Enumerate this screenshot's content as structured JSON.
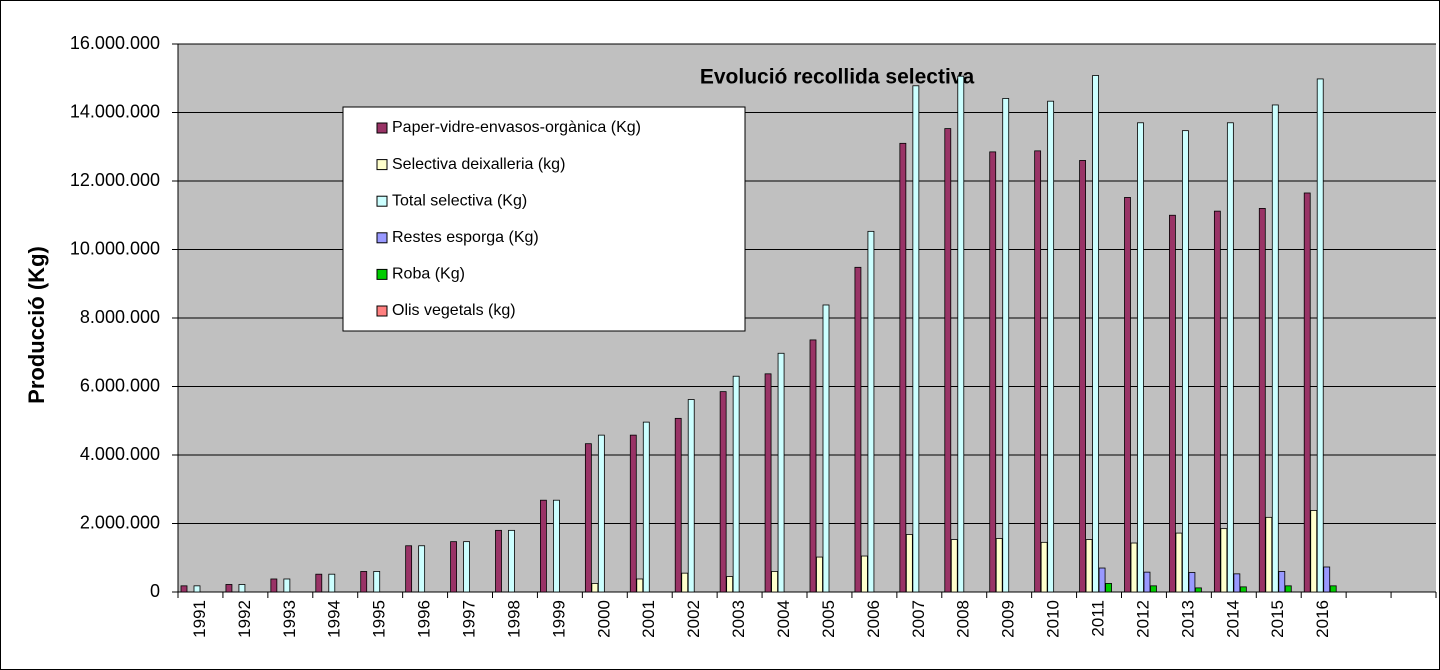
{
  "chart_data": {
    "type": "bar",
    "title": "Evolució recollida selectiva",
    "y_label": "Producció (Kg)",
    "categories": [
      "1991",
      "1992",
      "1993",
      "1994",
      "1995",
      "1996",
      "1997",
      "1998",
      "1999",
      "2000",
      "2001",
      "2002",
      "2003",
      "2004",
      "2005",
      "2006",
      "2007",
      "2008",
      "2009",
      "2010",
      "2011",
      "2012",
      "2013",
      "2014",
      "2015",
      "2016",
      null,
      null
    ],
    "series": [
      {
        "name": "Paper-vidre-envasos-orgànica (Kg)",
        "color": "#993366",
        "values": [
          180000,
          220000,
          380000,
          520000,
          600000,
          1350000,
          1470000,
          1800000,
          2680000,
          4330000,
          4580000,
          5070000,
          5850000,
          6370000,
          7360000,
          9480000,
          13100000,
          13530000,
          12850000,
          12880000,
          12600000,
          11520000,
          11000000,
          11120000,
          11200000,
          11650000,
          null,
          null
        ]
      },
      {
        "name": "Selectiva deixalleria (kg)",
        "color": "#ffffcc",
        "values": [
          null,
          null,
          null,
          null,
          null,
          null,
          null,
          null,
          null,
          250000,
          380000,
          550000,
          450000,
          600000,
          1020000,
          1050000,
          1680000,
          1530000,
          1560000,
          1450000,
          1530000,
          1430000,
          1720000,
          1850000,
          2180000,
          2380000,
          null,
          null
        ]
      },
      {
        "name": "Total selectiva (Kg)",
        "color": "#ccffff",
        "values": [
          180000,
          220000,
          380000,
          520000,
          600000,
          1350000,
          1470000,
          1800000,
          2680000,
          4580000,
          4960000,
          5620000,
          6300000,
          6970000,
          8380000,
          10530000,
          14780000,
          15060000,
          14410000,
          14330000,
          15080000,
          13700000,
          13470000,
          13700000,
          14220000,
          14980000,
          null,
          null
        ]
      },
      {
        "name": "Restes esporga (Kg)",
        "color": "#9999ff",
        "values": [
          null,
          null,
          null,
          null,
          null,
          null,
          null,
          null,
          null,
          null,
          null,
          null,
          null,
          null,
          null,
          null,
          null,
          null,
          null,
          null,
          700000,
          580000,
          570000,
          530000,
          600000,
          730000,
          null,
          null
        ]
      },
      {
        "name": "Roba (Kg)",
        "color": "#00cc00",
        "values": [
          null,
          null,
          null,
          null,
          null,
          null,
          null,
          null,
          null,
          null,
          null,
          null,
          null,
          null,
          null,
          null,
          null,
          null,
          null,
          null,
          250000,
          180000,
          120000,
          150000,
          180000,
          180000,
          null,
          null
        ]
      },
      {
        "name": "Olis vegetals (kg)",
        "color": "#ff8080",
        "values": [
          null,
          null,
          null,
          null,
          null,
          null,
          null,
          null,
          null,
          null,
          null,
          null,
          null,
          null,
          null,
          null,
          null,
          null,
          null,
          null,
          null,
          null,
          null,
          null,
          null,
          null,
          null,
          null
        ]
      }
    ],
    "ylim": [
      0,
      16000000
    ],
    "yticks": [
      0,
      {
        "value": 2000000,
        "label": "2.000.000"
      },
      {
        "value": 4000000,
        "label": "4.000.000"
      },
      {
        "value": 6000000,
        "label": "6.000.000"
      },
      {
        "value": 8000000,
        "label": "8.000.000"
      },
      {
        "value": 10000000,
        "label": "10.000.000"
      },
      {
        "value": 12000000,
        "label": "12.000.000"
      },
      {
        "value": 14000000,
        "label": "14.000.000"
      },
      {
        "value": 16000000,
        "label": "16.000.000"
      }
    ],
    "grid": true,
    "background": "#c0c0c0"
  }
}
